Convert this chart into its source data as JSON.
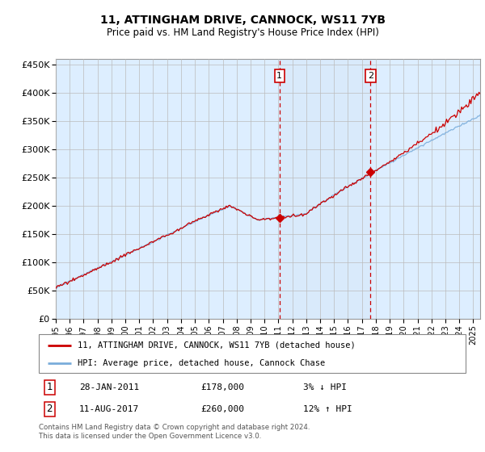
{
  "title": "11, ATTINGHAM DRIVE, CANNOCK, WS11 7YB",
  "subtitle": "Price paid vs. HM Land Registry's House Price Index (HPI)",
  "ylabel_ticks": [
    "£0",
    "£50K",
    "£100K",
    "£150K",
    "£200K",
    "£250K",
    "£300K",
    "£350K",
    "£400K",
    "£450K"
  ],
  "ytick_values": [
    0,
    50000,
    100000,
    150000,
    200000,
    250000,
    300000,
    350000,
    400000,
    450000
  ],
  "ylim": [
    0,
    460000
  ],
  "xlim_start": 1995.0,
  "xlim_end": 2025.5,
  "hpi_color": "#7aaddb",
  "price_color": "#cc0000",
  "bg_color": "#ddeeff",
  "grid_color": "#bbbbbb",
  "transaction1_x": 2011.08,
  "transaction1_price": 178000,
  "transaction2_x": 2017.62,
  "transaction2_price": 260000,
  "legend_line1": "11, ATTINGHAM DRIVE, CANNOCK, WS11 7YB (detached house)",
  "legend_line2": "HPI: Average price, detached house, Cannock Chase",
  "note1_label": "1",
  "note1_date": "28-JAN-2011",
  "note1_price": "£178,000",
  "note1_pct": "3% ↓ HPI",
  "note2_label": "2",
  "note2_date": "11-AUG-2017",
  "note2_price": "£260,000",
  "note2_pct": "12% ↑ HPI",
  "footer": "Contains HM Land Registry data © Crown copyright and database right 2024.\nThis data is licensed under the Open Government Licence v3.0."
}
